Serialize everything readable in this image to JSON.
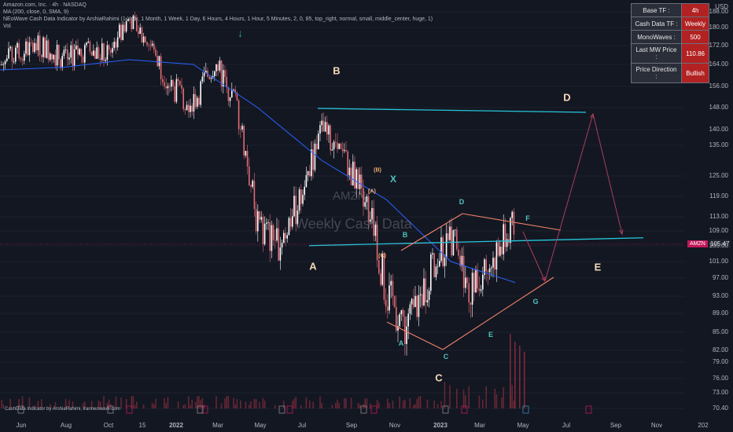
{
  "legend": {
    "line1": "Amazon.com, Inc. · 4h · NASDAQ",
    "line2": "MA (200, close, 0, SMA, 9)",
    "line3": "NEoWave Cash Data Indicator by ArshiaRahimi (1 Year, 1 Month, 1 Week, 1 Day, 6 Hours, 4 Hours, 1 Hour, 5 Minutes, 2, 0, 85, top_right, normal, small, middle_center, huge, 1)",
    "line4": "Vol"
  },
  "info_table": [
    {
      "key": "Base TF :",
      "value": "4h"
    },
    {
      "key": "Cash Data TF :",
      "value": "Weekly"
    },
    {
      "key": "MonoWaves :",
      "value": "500"
    },
    {
      "key": "Last MW Price :",
      "value": "110.86"
    },
    {
      "key": "Price Direction :",
      "value": "Bullish"
    }
  ],
  "currency": "USD",
  "watermark": {
    "symbol": "AMZN",
    "text": "Weekly Cash Data"
  },
  "last_price": {
    "tag": "AMZN",
    "value": "105.47"
  },
  "footer_note": "CashData Indicator by ArshiaRahimi, iranneowave.com",
  "wave_labels": {
    "A": "A",
    "B": "B",
    "C": "C",
    "D": "D",
    "E": "E",
    "X": "X",
    "a": "A",
    "b": "B",
    "c": "C",
    "d": "D",
    "e": "E",
    "f": "F",
    "g": "G",
    "sub_a": "(A)",
    "sub_b": "(B)",
    "sub_c": "(C)"
  },
  "colors": {
    "background": "#131722",
    "bull": "#ffffff",
    "bear": "#e06a72",
    "ma200": "#2962ff",
    "cyan_line": "#26c6da",
    "triangle": "#f0836a",
    "projection": "#a83e5a",
    "info_value_bg": "#b22222",
    "volume": "#7a2a3a"
  },
  "chart_data": {
    "type": "line",
    "title": "Amazon.com, Inc. · 4h · NASDAQ",
    "y_axis_ticks": [
      70.4,
      73.0,
      76.0,
      79.0,
      82.0,
      85.0,
      89.0,
      93.0,
      97.0,
      101.0,
      105.0,
      109.0,
      113.0,
      119.0,
      125.0,
      135.0,
      140.0,
      148.0,
      156.0,
      164.0,
      172.0,
      180.0,
      188.0
    ],
    "x_axis_ticks": [
      "Jun",
      "Aug",
      "Oct",
      "15",
      "2022",
      "Mar",
      "May",
      "Jul",
      "Sep",
      "Nov",
      "2023",
      "Mar",
      "May",
      "Jul",
      "Sep",
      "Nov",
      "202"
    ],
    "series": [
      {
        "name": "AMZN",
        "x": [
          "2021-05",
          "2021-06",
          "2021-07",
          "2021-08",
          "2021-09",
          "2021-10",
          "2021-11",
          "2021-12",
          "2022-01",
          "2022-02",
          "2022-03",
          "2022-04",
          "2022-05",
          "2022-06",
          "2022-07",
          "2022-08",
          "2022-09",
          "2022-10",
          "2022-11",
          "2022-12",
          "2023-01",
          "2023-02",
          "2023-03",
          "2023-04",
          "2023-05"
        ],
        "values": [
          164,
          170,
          172,
          166,
          170,
          168,
          185,
          172,
          155,
          150,
          165,
          150,
          110,
          106,
          118,
          140,
          130,
          120,
          93,
          86,
          98,
          108,
          94,
          102,
          110.86
        ]
      },
      {
        "name": "MA 200",
        "x": [
          "2021-05",
          "2021-08",
          "2021-11",
          "2022-02",
          "2022-05",
          "2022-08",
          "2022-11",
          "2023-02",
          "2023-05"
        ],
        "values": [
          162,
          163,
          166,
          164,
          148,
          130,
          118,
          101,
          96
        ]
      }
    ],
    "annotations": {
      "cyan_resistance": 148,
      "cyan_support": 108
    }
  }
}
